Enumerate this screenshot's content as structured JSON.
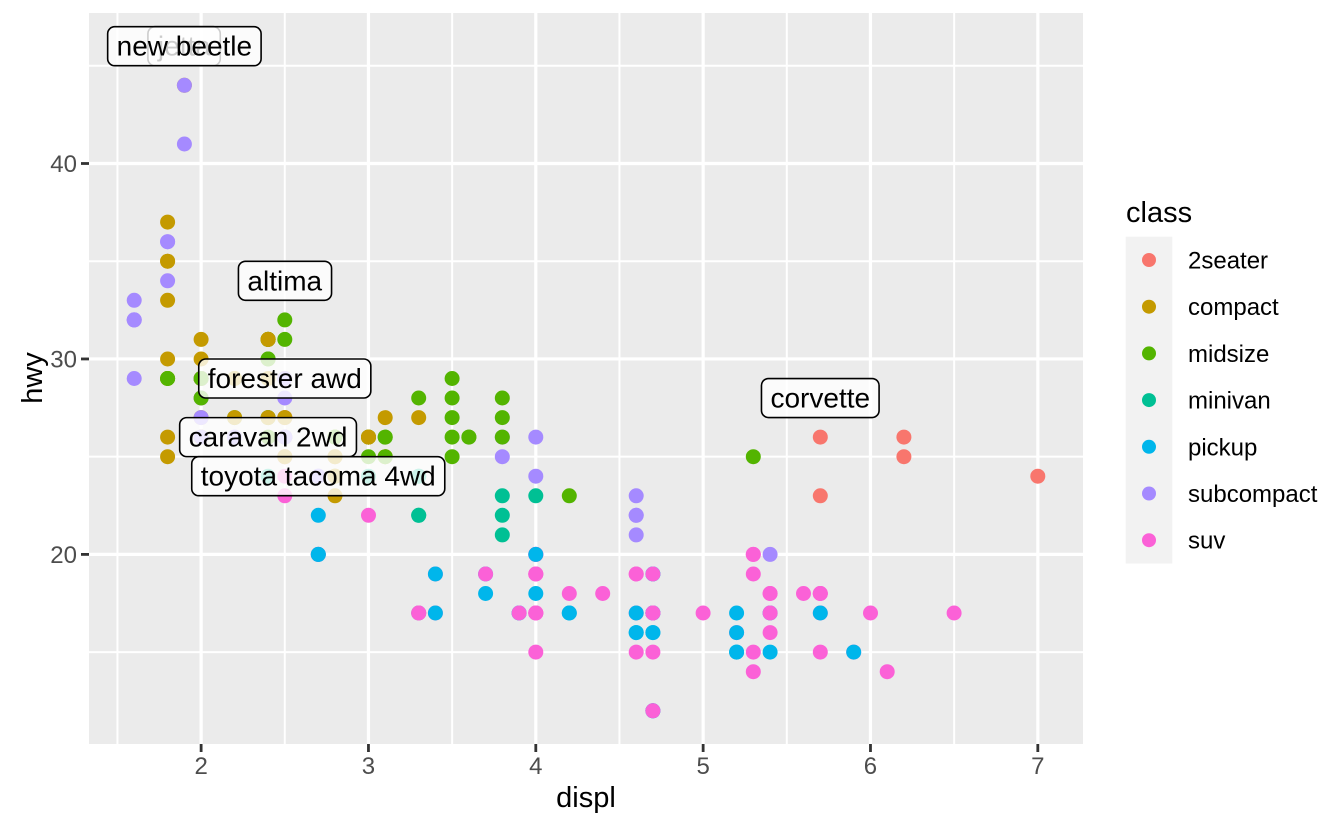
{
  "chart_data": {
    "type": "scatter",
    "title": "",
    "xlabel": "displ",
    "ylabel": "hwy",
    "xlim": [
      1.33,
      7.27
    ],
    "ylim": [
      10.3,
      47.7
    ],
    "x_ticks": [
      2,
      3,
      4,
      5,
      6,
      7
    ],
    "x_minor_ticks": [
      1.5,
      2.5,
      3.5,
      4.5,
      5.5,
      6.5
    ],
    "y_ticks": [
      20,
      30,
      40
    ],
    "y_minor_ticks": [
      15,
      25,
      35,
      45
    ],
    "grid": true,
    "legend": {
      "title": "class",
      "position": "right"
    },
    "style": {
      "panel_bg": "#EBEBEB",
      "grid_color": "#FFFFFF",
      "legend_key_bg": "#F2F2F2",
      "tick_color": "#333333",
      "tick_label_color": "#4D4D4D",
      "label_box_fill": "rgba(255,255,255,0.8)",
      "label_box_stroke": "#000000",
      "label_text_color": "#000000"
    },
    "classes": [
      {
        "name": "2seater",
        "color": "#F8766D"
      },
      {
        "name": "compact",
        "color": "#C49A00"
      },
      {
        "name": "midsize",
        "color": "#53B400"
      },
      {
        "name": "minivan",
        "color": "#00C094"
      },
      {
        "name": "pickup",
        "color": "#00B6EB"
      },
      {
        "name": "subcompact",
        "color": "#A58AFF"
      },
      {
        "name": "suv",
        "color": "#FB61D7"
      }
    ],
    "annotations": [
      {
        "label": "corvette",
        "x": 5.7,
        "y": 28
      },
      {
        "label": "caravan 2wd",
        "x": 2.4,
        "y": 26
      },
      {
        "label": "altima",
        "x": 2.5,
        "y": 34
      },
      {
        "label": "forester awd",
        "x": 2.5,
        "y": 29
      },
      {
        "label": "toyota tacoma 4wd",
        "x": 2.7,
        "y": 24
      },
      {
        "label": "jetta",
        "x": 1.9,
        "y": 46
      },
      {
        "label": "new beetle",
        "x": 1.9,
        "y": 46
      }
    ],
    "points": [
      [
        1.8,
        29,
        1
      ],
      [
        1.8,
        29,
        1
      ],
      [
        2,
        31,
        1
      ],
      [
        2,
        30,
        1
      ],
      [
        2.8,
        26,
        1
      ],
      [
        2.8,
        26,
        1
      ],
      [
        3.1,
        27,
        1
      ],
      [
        1.8,
        26,
        1
      ],
      [
        1.8,
        25,
        1
      ],
      [
        2,
        28,
        1
      ],
      [
        2,
        27,
        1
      ],
      [
        2.8,
        25,
        1
      ],
      [
        2.8,
        25,
        1
      ],
      [
        3.1,
        25,
        1
      ],
      [
        3.1,
        25,
        1
      ],
      [
        2.8,
        24,
        2
      ],
      [
        3.1,
        25,
        2
      ],
      [
        4.2,
        23,
        2
      ],
      [
        5.3,
        20,
        6
      ],
      [
        5.3,
        15,
        6
      ],
      [
        5.3,
        20,
        6
      ],
      [
        5.7,
        17,
        6
      ],
      [
        6,
        17,
        6
      ],
      [
        5.7,
        26,
        0
      ],
      [
        5.7,
        23,
        0
      ],
      [
        6.2,
        26,
        0
      ],
      [
        6.2,
        25,
        0
      ],
      [
        7,
        24,
        0
      ],
      [
        5.3,
        19,
        6
      ],
      [
        5.3,
        14,
        6
      ],
      [
        5.7,
        15,
        6
      ],
      [
        6.5,
        17,
        6
      ],
      [
        2.4,
        27,
        2
      ],
      [
        2.4,
        30,
        2
      ],
      [
        3.1,
        26,
        2
      ],
      [
        3.5,
        29,
        2
      ],
      [
        3.6,
        26,
        2
      ],
      [
        2.4,
        24,
        3
      ],
      [
        3,
        24,
        3
      ],
      [
        3.3,
        22,
        3
      ],
      [
        3.3,
        22,
        3
      ],
      [
        3.3,
        24,
        3
      ],
      [
        3.3,
        24,
        3
      ],
      [
        3.3,
        17,
        3
      ],
      [
        3.8,
        22,
        3
      ],
      [
        3.8,
        21,
        3
      ],
      [
        3.8,
        23,
        3
      ],
      [
        4,
        23,
        3
      ],
      [
        3.7,
        19,
        4
      ],
      [
        3.7,
        18,
        4
      ],
      [
        3.9,
        17,
        4
      ],
      [
        3.9,
        17,
        4
      ],
      [
        4.7,
        19,
        4
      ],
      [
        4.7,
        19,
        4
      ],
      [
        4.7,
        12,
        4
      ],
      [
        5.2,
        17,
        4
      ],
      [
        5.2,
        15,
        4
      ],
      [
        3.9,
        17,
        6
      ],
      [
        4.7,
        17,
        6
      ],
      [
        4.7,
        12,
        6
      ],
      [
        4.7,
        17,
        6
      ],
      [
        5.2,
        16,
        6
      ],
      [
        5.7,
        18,
        6
      ],
      [
        5.9,
        15,
        6
      ],
      [
        4.7,
        16,
        4
      ],
      [
        4.7,
        12,
        4
      ],
      [
        4.7,
        17,
        4
      ],
      [
        4.7,
        17,
        4
      ],
      [
        4.7,
        16,
        4
      ],
      [
        4.7,
        17,
        4
      ],
      [
        5.2,
        15,
        4
      ],
      [
        5.2,
        16,
        4
      ],
      [
        5.7,
        17,
        4
      ],
      [
        5.9,
        15,
        4
      ],
      [
        4.6,
        17,
        6
      ],
      [
        5.4,
        17,
        6
      ],
      [
        5.4,
        18,
        6
      ],
      [
        4,
        17,
        6
      ],
      [
        4,
        19,
        6
      ],
      [
        4,
        17,
        6
      ],
      [
        4,
        19,
        6
      ],
      [
        4,
        17,
        6
      ],
      [
        4.6,
        19,
        6
      ],
      [
        4.2,
        17,
        4
      ],
      [
        4.2,
        17,
        4
      ],
      [
        4.6,
        16,
        4
      ],
      [
        4.6,
        16,
        4
      ],
      [
        4.6,
        17,
        4
      ],
      [
        5.4,
        15,
        4
      ],
      [
        5.4,
        17,
        4
      ],
      [
        3.8,
        26,
        5
      ],
      [
        3.8,
        25,
        5
      ],
      [
        4,
        26,
        5
      ],
      [
        4,
        24,
        5
      ],
      [
        4.6,
        21,
        5
      ],
      [
        4.6,
        22,
        5
      ],
      [
        4.6,
        23,
        5
      ],
      [
        4.6,
        22,
        5
      ],
      [
        5.4,
        20,
        5
      ],
      [
        1.6,
        33,
        5
      ],
      [
        1.6,
        32,
        5
      ],
      [
        1.6,
        32,
        5
      ],
      [
        1.6,
        29,
        5
      ],
      [
        1.6,
        32,
        5
      ],
      [
        1.8,
        34,
        5
      ],
      [
        1.8,
        36,
        5
      ],
      [
        1.8,
        36,
        5
      ],
      [
        2,
        29,
        5
      ],
      [
        2.4,
        26,
        2
      ],
      [
        2.4,
        27,
        2
      ],
      [
        2.4,
        30,
        2
      ],
      [
        2.4,
        31,
        2
      ],
      [
        2.5,
        26,
        2
      ],
      [
        2.5,
        26,
        2
      ],
      [
        3.3,
        28,
        2
      ],
      [
        2,
        26,
        5
      ],
      [
        2,
        29,
        5
      ],
      [
        2,
        28,
        5
      ],
      [
        2,
        27,
        5
      ],
      [
        2.7,
        24,
        5
      ],
      [
        2.7,
        24,
        5
      ],
      [
        2.7,
        24,
        5
      ],
      [
        3,
        22,
        6
      ],
      [
        3.7,
        19,
        6
      ],
      [
        4,
        20,
        6
      ],
      [
        4.7,
        17,
        6
      ],
      [
        4.7,
        12,
        6
      ],
      [
        4.7,
        19,
        6
      ],
      [
        5.7,
        18,
        6
      ],
      [
        6.1,
        14,
        6
      ],
      [
        4,
        15,
        6
      ],
      [
        4.2,
        18,
        6
      ],
      [
        4.4,
        18,
        6
      ],
      [
        4.6,
        15,
        6
      ],
      [
        5.4,
        17,
        6
      ],
      [
        5.4,
        16,
        6
      ],
      [
        5.4,
        18,
        6
      ],
      [
        4,
        17,
        6
      ],
      [
        4,
        19,
        6
      ],
      [
        4.6,
        19,
        6
      ],
      [
        5,
        17,
        6
      ],
      [
        2.4,
        29,
        1
      ],
      [
        2.4,
        27,
        1
      ],
      [
        2.5,
        31,
        2
      ],
      [
        2.5,
        32,
        2
      ],
      [
        3.5,
        27,
        2
      ],
      [
        3.5,
        26,
        2
      ],
      [
        3,
        26,
        2
      ],
      [
        3,
        25,
        2
      ],
      [
        3.5,
        25,
        2
      ],
      [
        3.3,
        17,
        6
      ],
      [
        3.3,
        17,
        6
      ],
      [
        4,
        20,
        6
      ],
      [
        5.6,
        18,
        6
      ],
      [
        3.1,
        26,
        2
      ],
      [
        3.8,
        26,
        2
      ],
      [
        3.8,
        27,
        2
      ],
      [
        3.8,
        28,
        2
      ],
      [
        5.3,
        25,
        2
      ],
      [
        2.5,
        25,
        6
      ],
      [
        2.5,
        24,
        6
      ],
      [
        2.5,
        27,
        6
      ],
      [
        2.5,
        25,
        6
      ],
      [
        2.5,
        26,
        6
      ],
      [
        2.5,
        23,
        6
      ],
      [
        2.2,
        26,
        5
      ],
      [
        2.2,
        26,
        5
      ],
      [
        2.5,
        26,
        5
      ],
      [
        2.5,
        26,
        5
      ],
      [
        2.5,
        25,
        1
      ],
      [
        2.5,
        27,
        1
      ],
      [
        2.5,
        25,
        1
      ],
      [
        2.5,
        27,
        1
      ],
      [
        2.7,
        20,
        6
      ],
      [
        2.7,
        20,
        6
      ],
      [
        3.4,
        19,
        6
      ],
      [
        3.4,
        17,
        6
      ],
      [
        4,
        20,
        6
      ],
      [
        4.7,
        17,
        6
      ],
      [
        2.2,
        29,
        2
      ],
      [
        2.2,
        27,
        2
      ],
      [
        2.4,
        31,
        2
      ],
      [
        2.4,
        31,
        2
      ],
      [
        3,
        26,
        2
      ],
      [
        3,
        26,
        2
      ],
      [
        3.5,
        28,
        2
      ],
      [
        2.2,
        27,
        1
      ],
      [
        2.2,
        29,
        1
      ],
      [
        2.4,
        31,
        1
      ],
      [
        2.4,
        31,
        1
      ],
      [
        3,
        26,
        1
      ],
      [
        3,
        26,
        1
      ],
      [
        3.3,
        27,
        1
      ],
      [
        1.8,
        30,
        1
      ],
      [
        1.8,
        33,
        1
      ],
      [
        1.8,
        35,
        1
      ],
      [
        1.8,
        37,
        1
      ],
      [
        1.8,
        35,
        1
      ],
      [
        4.7,
        15,
        6
      ],
      [
        5.7,
        18,
        6
      ],
      [
        2.7,
        20,
        4
      ],
      [
        2.7,
        20,
        4
      ],
      [
        2.7,
        22,
        4
      ],
      [
        3.4,
        17,
        4
      ],
      [
        3.4,
        19,
        4
      ],
      [
        4,
        18,
        4
      ],
      [
        4,
        20,
        4
      ],
      [
        2,
        29,
        1
      ],
      [
        2,
        26,
        1
      ],
      [
        2,
        29,
        1
      ],
      [
        2,
        29,
        1
      ],
      [
        2.8,
        24,
        1
      ],
      [
        1.9,
        44,
        1
      ],
      [
        2,
        29,
        1
      ],
      [
        2,
        26,
        1
      ],
      [
        2,
        29,
        1
      ],
      [
        2,
        29,
        1
      ],
      [
        2.5,
        29,
        1
      ],
      [
        2.5,
        29,
        1
      ],
      [
        2.8,
        23,
        1
      ],
      [
        2.8,
        24,
        1
      ],
      [
        1.9,
        44,
        5
      ],
      [
        1.9,
        41,
        5
      ],
      [
        2,
        29,
        5
      ],
      [
        2,
        26,
        5
      ],
      [
        2.5,
        28,
        5
      ],
      [
        2.5,
        29,
        5
      ],
      [
        1.8,
        29,
        2
      ],
      [
        1.8,
        29,
        2
      ],
      [
        2,
        28,
        2
      ],
      [
        2,
        29,
        2
      ],
      [
        2.8,
        26,
        2
      ],
      [
        2.8,
        26,
        2
      ],
      [
        3.6,
        26,
        2
      ]
    ]
  }
}
